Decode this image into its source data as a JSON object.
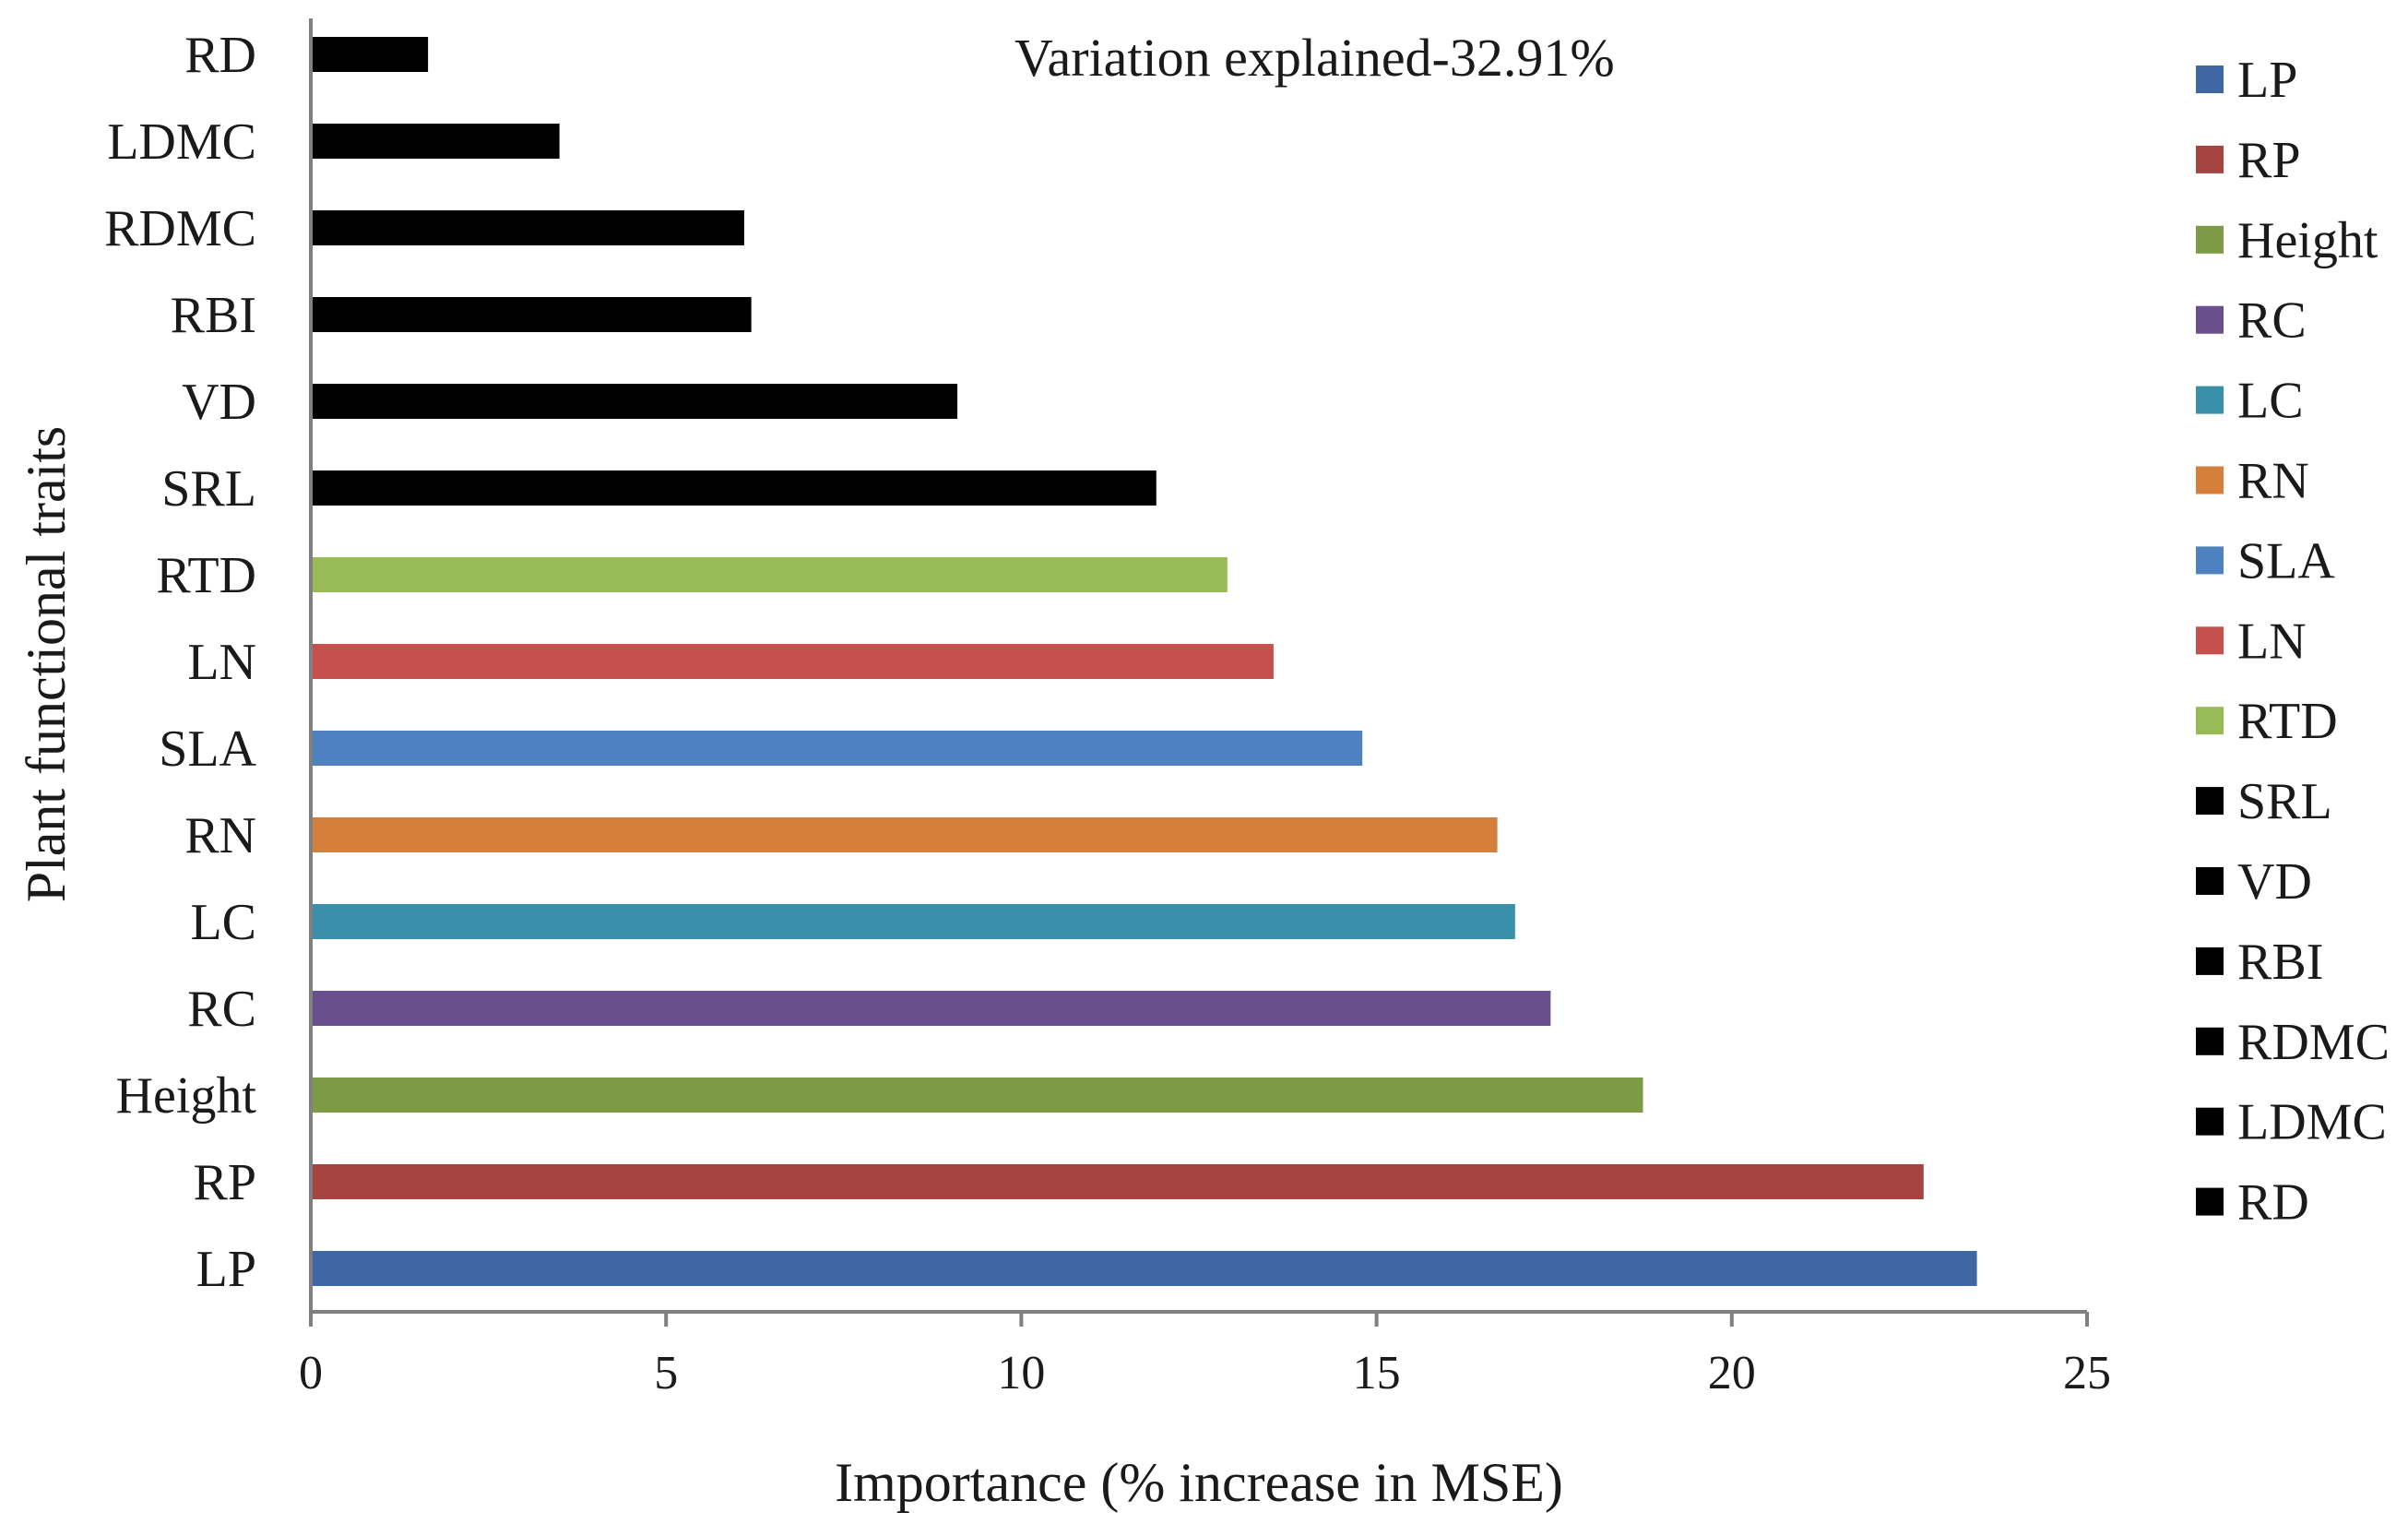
{
  "chart_data": {
    "type": "bar",
    "orientation": "horizontal",
    "title": "",
    "annotation": "Variation explained-32.91%",
    "xlabel": "Importance (% increase in MSE)",
    "ylabel": "Plant  functional traits",
    "xlim": [
      0,
      25
    ],
    "x_ticks": [
      0,
      5,
      10,
      15,
      20,
      25
    ],
    "x_tick_labels": [
      "0",
      "5",
      "10",
      "15",
      "20",
      "25"
    ],
    "grid": false,
    "legend_position": "right",
    "categories": [
      "LP",
      "RP",
      "Height",
      "RC",
      "LC",
      "RN",
      "SLA",
      "LN",
      "RTD",
      "SRL",
      "VD",
      "RBI",
      "RDMC",
      "LDMC",
      "RD"
    ],
    "values": [
      23.45,
      22.7,
      18.75,
      17.45,
      16.95,
      16.7,
      14.8,
      13.55,
      12.9,
      11.9,
      9.1,
      6.2,
      6.1,
      3.5,
      1.65
    ],
    "colors": [
      "#3e67a3",
      "#a54441",
      "#7d9a44",
      "#69508d",
      "#3a90a8",
      "#d47f3c",
      "#4d81c0",
      "#c6504d",
      "#99bb57",
      "#000000",
      "#000000",
      "#000000",
      "#000000",
      "#000000",
      "#000000"
    ],
    "legend": [
      "LP",
      "RP",
      "Height",
      "RC",
      "LC",
      "RN",
      "SLA",
      "LN",
      "RTD",
      "SRL",
      "VD",
      "RBI",
      "RDMC",
      "LDMC",
      "RD"
    ]
  }
}
